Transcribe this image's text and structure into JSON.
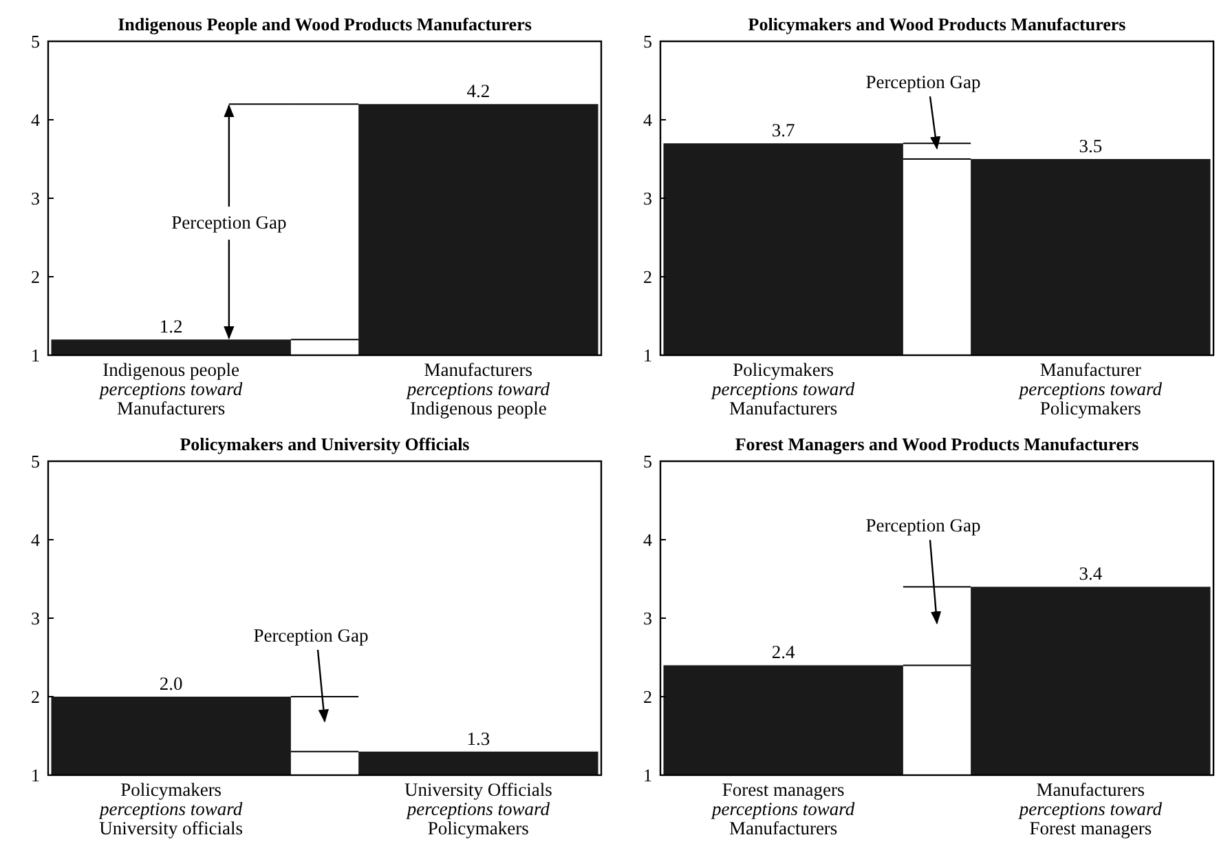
{
  "chart_data": [
    {
      "type": "bar",
      "title": "Indigenous People and Wood Products Manufacturers",
      "categories": [
        "Indigenous people\nperceptions toward\nManufacturers",
        "Manufacturers\nperceptions toward\nIndigenous people"
      ],
      "values": [
        1.2,
        4.2
      ],
      "value_labels": [
        "1.2",
        "4.2"
      ],
      "color": "#1a1a1a",
      "ylim": [
        1,
        5
      ],
      "yticks": [
        1,
        2,
        3,
        4,
        5
      ],
      "annotations": [
        {
          "text": "Perception Gap",
          "y": 1.2
        }
      ]
    },
    {
      "type": "bar",
      "title": "Policymakers and Wood Products Manufacturers",
      "categories": [
        "Policymakers\nperceptions toward\nManufacturers",
        "Manufacturer\nperceptions toward\nPolicymakers"
      ],
      "values": [
        3.7,
        3.5
      ],
      "value_labels": [
        "3.7",
        "3.5"
      ],
      "color": "#1a1a1a",
      "ylim": [
        1,
        5
      ],
      "yticks": [
        1,
        2,
        3,
        4,
        5
      ],
      "annotations": [
        "Perception Gap"
      ]
    },
    {
      "type": "bar",
      "title": "Policymakers and University Officials",
      "categories": [
        "Policymakers\nperceptions toward\nUniversity officials",
        "University Officials\nperceptions toward\nPolicymakers"
      ],
      "values": [
        2.0,
        1.3
      ],
      "value_labels": [
        "2.0",
        "1.3"
      ],
      "color": "#1a1a1a",
      "ylim": [
        1,
        5
      ],
      "yticks": [
        1,
        2,
        3,
        4,
        5
      ],
      "annotations": [
        "Perception Gap"
      ]
    },
    {
      "type": "bar",
      "title": "Forest Managers and Wood Products Manufacturers",
      "categories": [
        "Forest managers\nperceptions toward\nManufacturers",
        "Manufacturers\nperceptions toward\nForest managers"
      ],
      "values": [
        2.4,
        3.4
      ],
      "value_labels": [
        "2.4",
        "3.4"
      ],
      "color": "#1a1a1a",
      "ylim": [
        1,
        5
      ],
      "yticks": [
        1,
        2,
        3,
        4,
        5
      ],
      "annotations": [
        "Perception Gap"
      ]
    }
  ]
}
